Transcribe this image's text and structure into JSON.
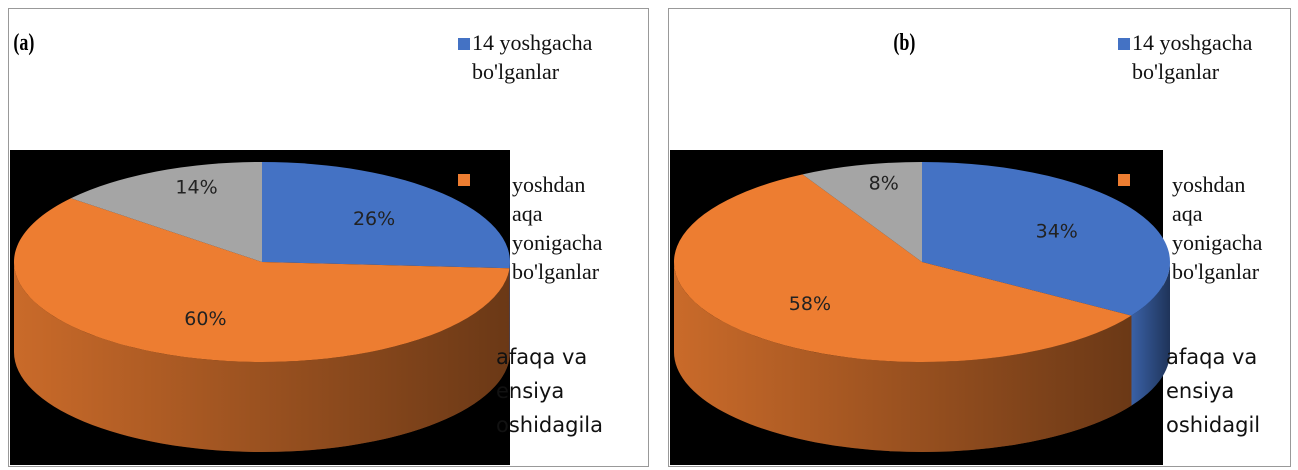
{
  "chart_data": [
    {
      "type": "pie",
      "label": "(a)",
      "categories": [
        "14 yoshgacha bo'lganlar",
        "yoshdan aqa yonigacha bo'lganlar",
        "afaqa va ensiya oshidagila"
      ],
      "values": [
        26,
        60,
        14
      ],
      "value_labels": [
        "26%",
        "60%",
        "14%"
      ],
      "colors": [
        "#4472c4",
        "#ed7d31",
        "#a5a5a5"
      ]
    },
    {
      "type": "pie",
      "label": "(b)",
      "categories": [
        "14 yoshgacha bo'lganlar",
        "yoshdan aqa yonigacha bo'lganlar",
        "afaqa va ensiya oshidagil"
      ],
      "values": [
        34,
        58,
        8
      ],
      "value_labels": [
        "34%",
        "58%",
        "8%"
      ],
      "colors": [
        "#4472c4",
        "#ed7d31",
        "#a5a5a5"
      ]
    }
  ]
}
